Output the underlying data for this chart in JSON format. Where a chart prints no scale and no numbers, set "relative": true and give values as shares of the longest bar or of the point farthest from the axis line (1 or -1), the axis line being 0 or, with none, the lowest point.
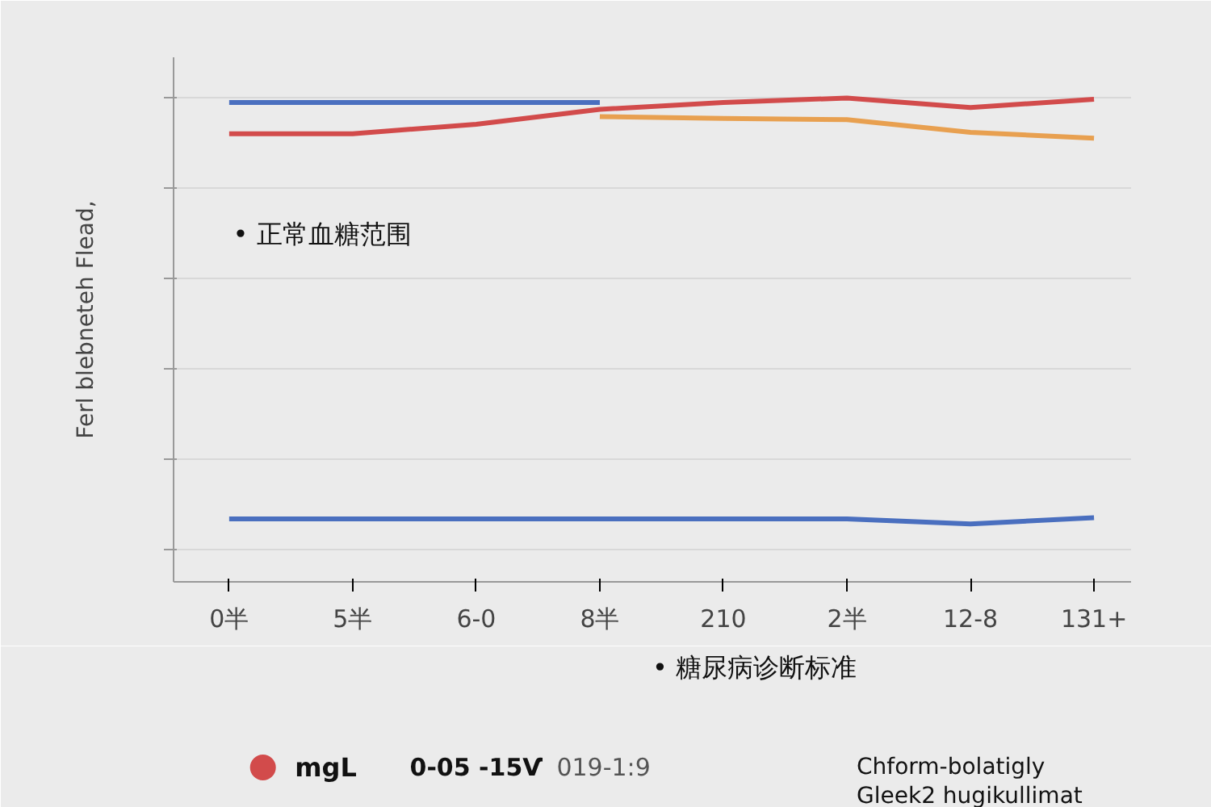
{
  "chart_data": {
    "type": "line",
    "relative": true,
    "ylabel": "Ferl blebneteh Flead,",
    "categories": [
      "0半",
      "5半",
      "6-0",
      "8半",
      "210",
      "2半",
      "12-8",
      "131+"
    ],
    "series": [
      {
        "color": "#4a6fbf",
        "values": [
          0.99,
          0.99,
          0.99,
          0.99,
          null,
          null,
          null,
          null
        ]
      },
      {
        "name": "mgL",
        "color": "#d24b4b",
        "values": [
          0.921,
          0.921,
          0.942,
          0.975,
          0.99,
          1.0,
          0.979,
          0.997
        ]
      },
      {
        "color": "#e8a050",
        "values": [
          null,
          null,
          null,
          0.959,
          0.955,
          0.952,
          0.924,
          0.911
        ]
      },
      {
        "color": "#4a6fbf",
        "values": [
          0.069,
          0.069,
          0.069,
          0.069,
          0.069,
          0.069,
          0.058,
          0.072
        ]
      }
    ],
    "annotations": [
      "• 正常血糖范围",
      "• 糖尿病诊断标准",
      "0-05 -15Ѵ",
      "019-1:9",
      "Chform-bolatigly Gleek2 hugikullimat"
    ],
    "legend": "bottom",
    "grid": "y"
  }
}
